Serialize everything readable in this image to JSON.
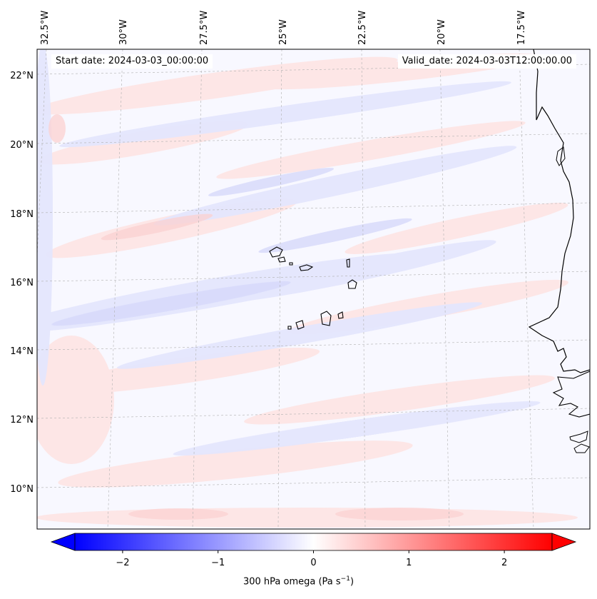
{
  "header": {
    "start_date": "Start date: 2024-03-03_00:00:00",
    "valid_date": "Valid_date: 2024-03-03T12:00:00.00"
  },
  "map": {
    "lon_ticks": [
      "32.5°W",
      "30°W",
      "27.5°W",
      "25°W",
      "22.5°W",
      "20°W",
      "17.5°W"
    ],
    "lat_ticks": [
      "22°N",
      "20°N",
      "18°N",
      "16°N",
      "14°N",
      "12°N",
      "10°N"
    ],
    "gridlines": true,
    "coastline_color": "#000000"
  },
  "colorbar": {
    "ticks": [
      "−2",
      "−1",
      "0",
      "1",
      "2"
    ],
    "tick_values": [
      -2,
      -1,
      0,
      1,
      2
    ],
    "range": [
      -2.5,
      2.5
    ],
    "colormap": "bwr",
    "extend": "both",
    "label_main": "300 hPa omega (Pa s",
    "label_sup": "−1",
    "label_end": ")"
  }
}
